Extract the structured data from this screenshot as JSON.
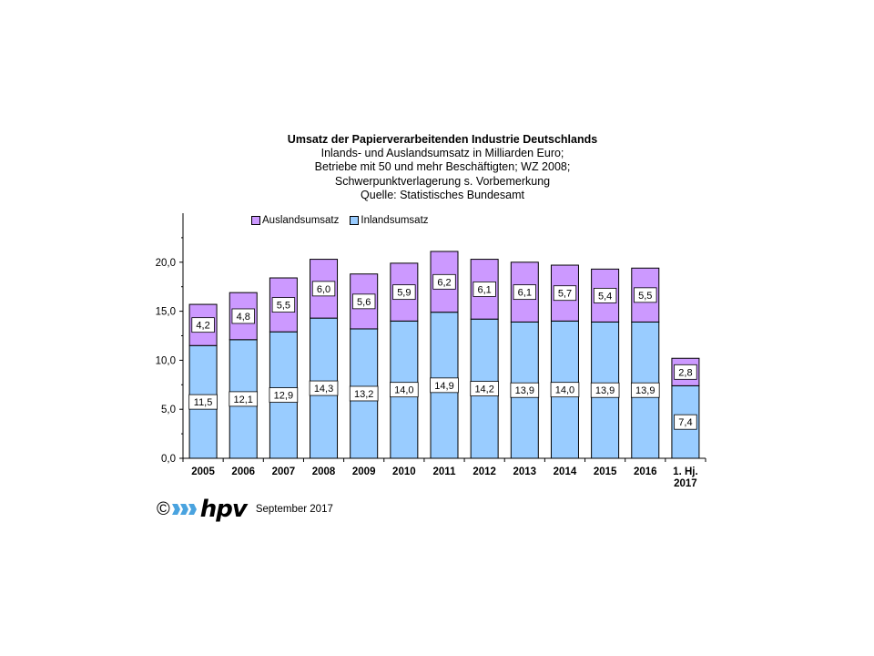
{
  "chart_data": {
    "type": "bar",
    "stacked": true,
    "title": "Umsatz der Papierverarbeitenden Industrie Deutschlands",
    "subtitle_lines": [
      "Inlands- und Auslandsumsatz  in Milliarden Euro;",
      "Betriebe mit 50 und mehr  Beschäftigten; WZ 2008;",
      "Schwerpunktverlagerung s. Vorbemerkung",
      "Quelle: Statistisches Bundesamt"
    ],
    "categories": [
      "2005",
      "2006",
      "2007",
      "2008",
      "2009",
      "2010",
      "2011",
      "2012",
      "2013",
      "2014",
      "2015",
      "2016",
      "1. Hj. 2017"
    ],
    "series": [
      {
        "name": "Inlandsumsatz",
        "color": "#99ccff",
        "values": [
          11.5,
          12.1,
          12.9,
          14.3,
          13.2,
          14.0,
          14.9,
          14.2,
          13.9,
          14.0,
          13.9,
          13.9,
          7.4
        ],
        "labels": [
          "11,5",
          "12,1",
          "12,9",
          "14,3",
          "13,2",
          "14,0",
          "14,9",
          "14,2",
          "13,9",
          "14,0",
          "13,9",
          "13,9",
          "7,4"
        ]
      },
      {
        "name": "Auslandsumsatz",
        "color": "#cc99ff",
        "values": [
          4.2,
          4.8,
          5.5,
          6.0,
          5.6,
          5.9,
          6.2,
          6.1,
          6.1,
          5.7,
          5.4,
          5.5,
          2.8
        ],
        "labels": [
          "4,2",
          "4,8",
          "5,5",
          "6,0",
          "5,6",
          "5,9",
          "6,2",
          "6,1",
          "6,1",
          "5,7",
          "5,4",
          "5,5",
          "2,8"
        ]
      }
    ],
    "legend_order": [
      "Auslandsumsatz",
      "Inlandsumsatz"
    ],
    "ylim": [
      0,
      25
    ],
    "yticks": [
      {
        "value": 0,
        "label": "0,0"
      },
      {
        "value": 5,
        "label": "5,0"
      },
      {
        "value": 10,
        "label": "10,0"
      },
      {
        "value": 15,
        "label": "15,0"
      },
      {
        "value": 20,
        "label": "20,0"
      }
    ],
    "legend_position": "top-left",
    "grid": false
  },
  "footer": {
    "copyright": "©",
    "logo_text": "hpv",
    "date": "September 2017"
  }
}
